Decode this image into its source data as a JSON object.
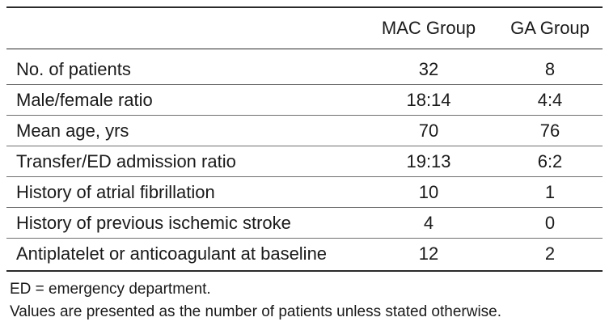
{
  "table": {
    "headers": [
      "",
      "MAC Group",
      "GA Group"
    ],
    "rows": [
      {
        "label": "No. of patients",
        "mac": "32",
        "ga": "8"
      },
      {
        "label": "Male/female ratio",
        "mac": "18:14",
        "ga": "4:4"
      },
      {
        "label": "Mean age, yrs",
        "mac": "70",
        "ga": "76"
      },
      {
        "label": "Transfer/ED admission ratio",
        "mac": "19:13",
        "ga": "6:2"
      },
      {
        "label": "History of atrial fibrillation",
        "mac": "10",
        "ga": "1"
      },
      {
        "label": "History of previous ischemic stroke",
        "mac": "4",
        "ga": "0"
      },
      {
        "label": "Antiplatelet or anticoagulant at baseline",
        "mac": "12",
        "ga": "2"
      }
    ]
  },
  "footnotes": [
    "ED = emergency department.",
    "Values are presented as the number of patients unless stated otherwise."
  ]
}
